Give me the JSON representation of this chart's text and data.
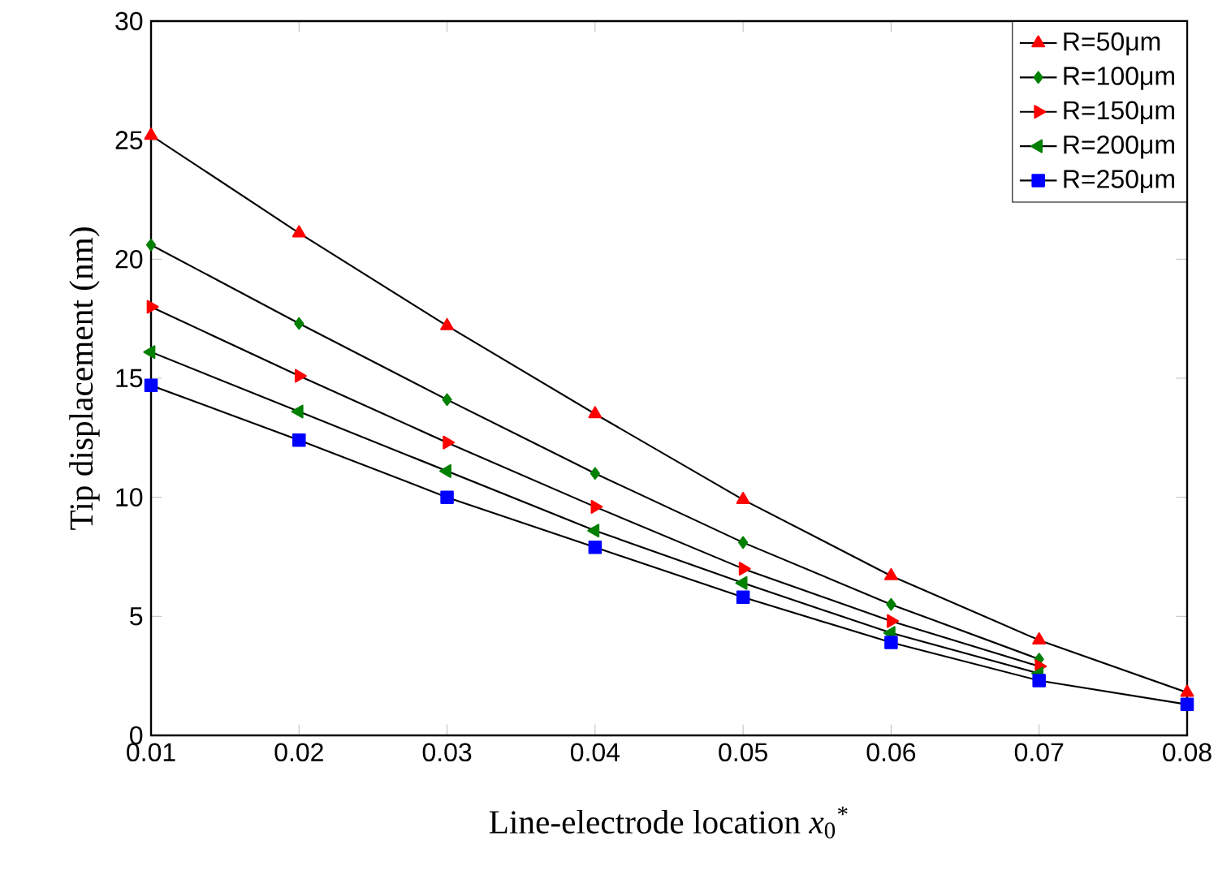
{
  "chart_data": {
    "type": "line",
    "xlabel": "Line-electrode location  *x*$_{0}$$^{*}$",
    "ylabel": "Tip displacement (nm)",
    "x": [
      0.01,
      0.02,
      0.03,
      0.04,
      0.05,
      0.06,
      0.07,
      0.08
    ],
    "series": [
      {
        "name": "R=50μm",
        "color": "#ff0000",
        "marker": "triangle",
        "values": [
          25.2,
          21.1,
          17.2,
          13.5,
          9.9,
          6.7,
          4.0,
          1.8
        ]
      },
      {
        "name": "R=100μm",
        "color": "#008000",
        "marker": "diamond",
        "values": [
          20.6,
          17.3,
          14.1,
          11.0,
          8.1,
          5.5,
          3.2,
          null
        ]
      },
      {
        "name": "R=150μm",
        "color": "#ff0000",
        "marker": "triangle-right",
        "values": [
          18.0,
          15.1,
          12.3,
          9.6,
          7.0,
          4.8,
          2.9,
          null
        ]
      },
      {
        "name": "R=200μm",
        "color": "#008000",
        "marker": "triangle-left",
        "values": [
          16.1,
          13.6,
          11.1,
          8.6,
          6.4,
          4.3,
          2.6,
          null
        ]
      },
      {
        "name": "R=250μm",
        "color": "#0000ff",
        "marker": "square",
        "values": [
          14.7,
          12.4,
          10.0,
          7.9,
          5.8,
          3.9,
          2.3,
          1.3
        ]
      }
    ],
    "xlim": [
      0.01,
      0.08
    ],
    "ylim": [
      0,
      30
    ],
    "xticks": [
      0.01,
      0.02,
      0.03,
      0.04,
      0.05,
      0.06,
      0.07,
      0.08
    ],
    "yticks": [
      0,
      5,
      10,
      15,
      20,
      25,
      30
    ],
    "legend": "top right",
    "grid": false,
    "line_style": "solid"
  }
}
